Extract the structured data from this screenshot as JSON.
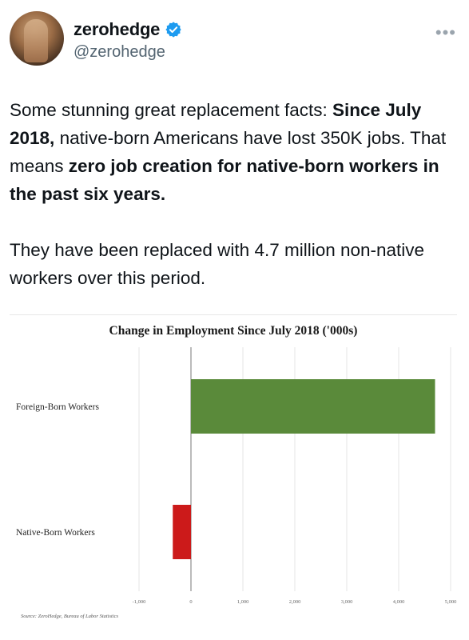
{
  "author": {
    "display_name": "zerohedge",
    "handle": "@zerohedge",
    "verified": true
  },
  "menu_icon": "more-horizontal-icon",
  "tweet": {
    "p1_a": "Some stunning great replacement facts: ",
    "p1_b": "Since July 2018,",
    "p1_c": " native-born Americans have lost 350K jobs. That means ",
    "p1_d": "zero job creation for native-born workers in the past six years.",
    "p2": "They have been replaced with 4.7 million non-native workers over this period."
  },
  "chart_data": {
    "type": "bar",
    "orientation": "horizontal",
    "title": "Change in Employment Since July 2018 ('000s)",
    "categories": [
      "Foreign-Born Workers",
      "Native-Born Workers"
    ],
    "values": [
      4700,
      -350
    ],
    "colors": [
      "#5a8a3a",
      "#cc1a1a"
    ],
    "xlim": [
      -1000,
      5000
    ],
    "xticks": [
      "-1,000",
      "0",
      "1,000",
      "2,000",
      "3,000",
      "4,000",
      "5,000"
    ],
    "grid": true,
    "source": "Source: ZeroHedge, Bureau of Labor Statistics"
  }
}
